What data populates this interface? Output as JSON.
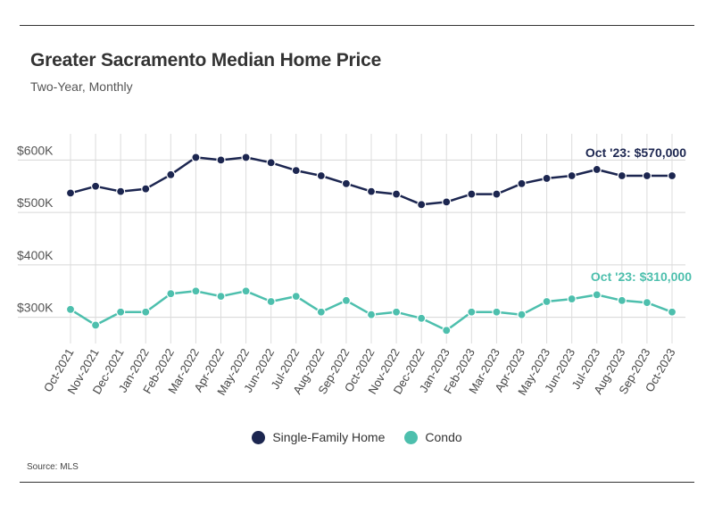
{
  "header": {
    "title": "Greater Sacramento Median Home Price",
    "subtitle": "Two-Year, Monthly"
  },
  "footer": {
    "source": "Source:  MLS"
  },
  "chart_data": {
    "type": "line",
    "title": "Greater Sacramento Median Home Price",
    "subtitle": "Two-Year, Monthly",
    "xlabel": "",
    "ylabel": "",
    "ylim": [
      250000,
      650000
    ],
    "yticks": [
      300000,
      400000,
      500000,
      600000
    ],
    "ytick_labels": [
      "$300K",
      "$400K",
      "$500K",
      "$600K"
    ],
    "grid": true,
    "legend_position": "bottom-center",
    "categories": [
      "Oct-2021",
      "Nov-2021",
      "Dec-2021",
      "Jan-2022",
      "Feb-2022",
      "Mar-2022",
      "Apr-2022",
      "May-2022",
      "Jun-2022",
      "Jul-2022",
      "Aug-2022",
      "Sep-2022",
      "Oct-2022",
      "Nov-2022",
      "Dec-2022",
      "Jan-2023",
      "Feb-2023",
      "Mar-2023",
      "Apr-2023",
      "May-2023",
      "Jun-2023",
      "Jul-2023",
      "Aug-2023",
      "Sep-2023",
      "Oct-2023"
    ],
    "series": [
      {
        "name": "Single-Family Home",
        "color": "#1c2650",
        "values": [
          537000,
          550000,
          540000,
          545000,
          572000,
          605000,
          600000,
          605000,
          595000,
          580000,
          570000,
          555000,
          540000,
          535000,
          515000,
          520000,
          535000,
          535000,
          555000,
          565000,
          570000,
          582000,
          570000,
          570000,
          570000
        ],
        "annotation": "Oct '23: $570,000"
      },
      {
        "name": "Condo",
        "color": "#4dbfad",
        "values": [
          315000,
          285000,
          310000,
          310000,
          345000,
          350000,
          340000,
          350000,
          330000,
          340000,
          310000,
          332000,
          305000,
          310000,
          298000,
          275000,
          310000,
          310000,
          305000,
          330000,
          335000,
          343000,
          332000,
          328000,
          310000
        ],
        "annotation": "Oct '23: $310,000"
      }
    ]
  }
}
